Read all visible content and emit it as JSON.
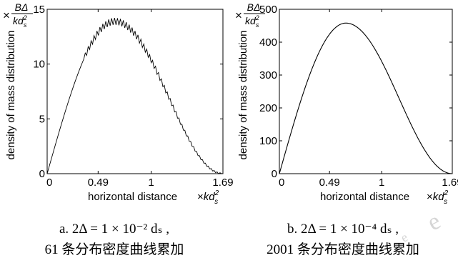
{
  "chart_data": [
    {
      "type": "line",
      "ylabel": "density of mass distribution",
      "xlabel": "horizontal distance",
      "xlim": [
        0,
        1.69
      ],
      "ylim": [
        0,
        15
      ],
      "x_ticks": [
        "0",
        "0.49",
        "1",
        "1.69"
      ],
      "x_tick_values": [
        0,
        0.49,
        1,
        1.69
      ],
      "y_ticks": [
        "0",
        "5",
        "10",
        "15"
      ],
      "y_tick_values": [
        0,
        5,
        10,
        15
      ],
      "y_unit_prefix": "×",
      "y_unit_frac_num": "BΔ",
      "y_unit_frac_den": "kd",
      "y_unit_frac_den_sup": "2",
      "y_unit_frac_den_sub": "s",
      "x_unit_prefix": "×",
      "x_unit": "kd",
      "x_unit_sup": "2",
      "x_unit_sub": "s",
      "peak_x": 0.65,
      "peak_y": 13.9,
      "oscillating": true,
      "line_color": "#000000",
      "grid": false,
      "caption_line1": "a. 2Δ = 1 × 10⁻² dₛ ,",
      "caption_line2": "61 条分布密度曲线累加"
    },
    {
      "type": "line",
      "ylabel": "density of mass distribution",
      "xlabel": "horizontal distance",
      "xlim": [
        0,
        1.69
      ],
      "ylim": [
        0,
        500
      ],
      "x_ticks": [
        "0",
        "0.49",
        "1",
        "1.69"
      ],
      "x_tick_values": [
        0,
        0.49,
        1,
        1.69
      ],
      "y_ticks": [
        "0",
        "100",
        "200",
        "300",
        "400",
        "500"
      ],
      "y_tick_values": [
        0,
        100,
        200,
        300,
        400,
        500
      ],
      "y_unit_prefix": "×",
      "y_unit_frac_num": "BΔ",
      "y_unit_frac_den": "kd",
      "y_unit_frac_den_sup": "2",
      "y_unit_frac_den_sub": "s",
      "x_unit_prefix": "×",
      "x_unit": "kd",
      "x_unit_sup": "2",
      "x_unit_sub": "s",
      "peak_x": 0.65,
      "peak_y": 458,
      "oscillating": false,
      "line_color": "#000000",
      "grid": false,
      "caption_line1": "b. 2Δ = 1 × 10⁻⁴ dₛ ,",
      "caption_line2": "2001 条分布密度曲线累加"
    }
  ],
  "watermark_text": "e"
}
